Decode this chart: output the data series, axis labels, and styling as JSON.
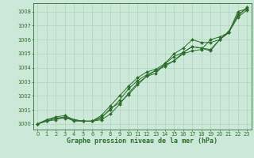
{
  "title": "Graphe pression niveau de la mer (hPa)",
  "background_color": "#cce8d8",
  "grid_color": "#aaccb8",
  "line_color": "#2d6e2d",
  "xlim": [
    -0.5,
    23.5
  ],
  "ylim": [
    999.6,
    1008.6
  ],
  "yticks": [
    1000,
    1001,
    1002,
    1003,
    1004,
    1005,
    1006,
    1007,
    1008
  ],
  "xticks": [
    0,
    1,
    2,
    3,
    4,
    5,
    6,
    7,
    8,
    9,
    10,
    11,
    12,
    13,
    14,
    15,
    16,
    17,
    18,
    19,
    20,
    21,
    22,
    23
  ],
  "line1": [
    1000.0,
    1000.3,
    1000.4,
    1000.5,
    1000.3,
    1000.2,
    1000.2,
    1000.5,
    1001.0,
    1001.7,
    1002.5,
    1003.1,
    1003.5,
    1003.8,
    1004.2,
    1004.5,
    1005.0,
    1005.2,
    1005.3,
    1006.0,
    1006.2,
    1006.5,
    1007.8,
    1008.2
  ],
  "line2": [
    1000.0,
    1000.3,
    1000.5,
    1000.6,
    1000.3,
    1000.2,
    1000.2,
    1000.6,
    1001.3,
    1002.0,
    1002.7,
    1003.3,
    1003.7,
    1003.9,
    1004.3,
    1004.8,
    1005.1,
    1005.5,
    1005.4,
    1005.3,
    1006.0,
    1006.6,
    1007.7,
    1008.3
  ],
  "line3": [
    1000.0,
    1000.2,
    1000.4,
    1000.4,
    1000.3,
    1000.2,
    1000.2,
    1000.4,
    1001.1,
    1001.5,
    1002.1,
    1002.8,
    1003.4,
    1003.6,
    1004.3,
    1005.0,
    1005.4,
    1006.0,
    1005.8,
    1005.8,
    1006.0,
    1006.5,
    1008.0,
    1008.2
  ],
  "line4": [
    1000.0,
    1000.2,
    1000.3,
    1000.5,
    1000.2,
    1000.2,
    1000.2,
    1000.3,
    1000.7,
    1001.4,
    1002.2,
    1002.9,
    1003.4,
    1003.8,
    1004.1,
    1004.5,
    1005.1,
    1005.5,
    1005.4,
    1005.2,
    1006.0,
    1006.5,
    1007.6,
    1008.1
  ],
  "title_fontsize": 6.0,
  "tick_fontsize": 4.8,
  "linewidth": 0.7,
  "markersize": 2.0
}
